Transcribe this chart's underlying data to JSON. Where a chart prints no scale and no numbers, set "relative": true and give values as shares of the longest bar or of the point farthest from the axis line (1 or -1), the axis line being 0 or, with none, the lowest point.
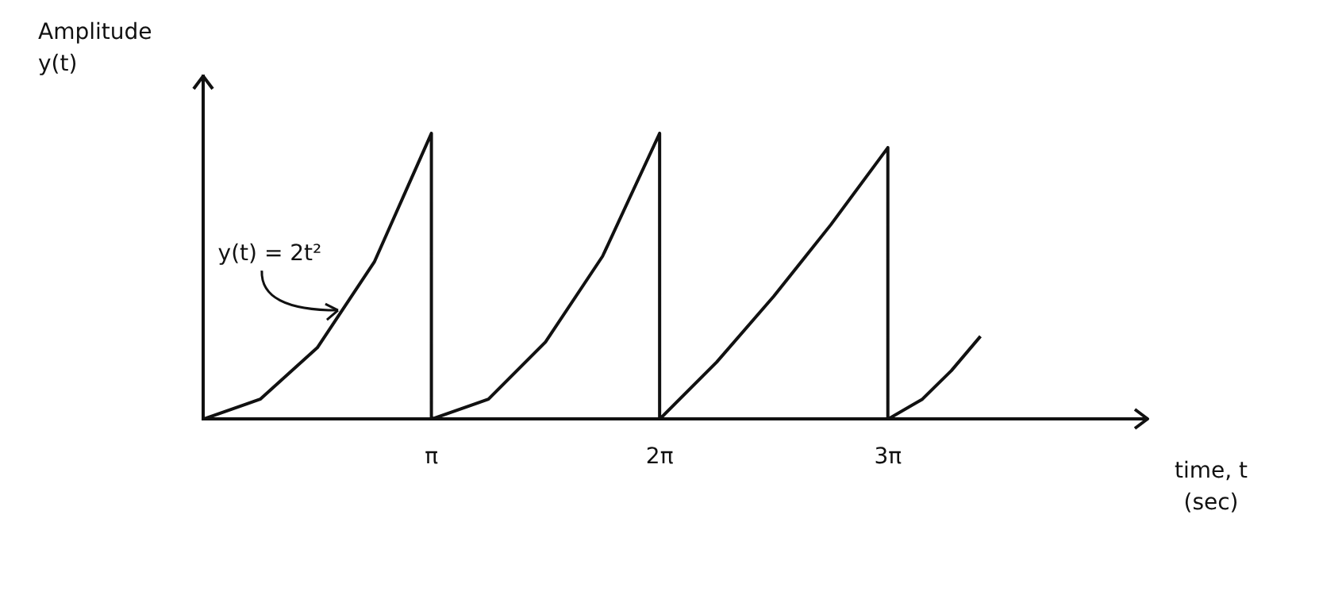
{
  "chart_data": {
    "type": "line",
    "relative": true,
    "ylabel": "Amplitude\ny(t)",
    "xlabel": "time, t\n(sec)",
    "xlim": [
      0,
      13
    ],
    "xticks": [
      {
        "value": 3.1416,
        "label": "π"
      },
      {
        "value": 6.2832,
        "label": "2π"
      },
      {
        "value": 9.4248,
        "label": "3π"
      }
    ],
    "series": [
      {
        "color": "#111111",
        "x": [
          0,
          0.785,
          1.571,
          2.356,
          3.1416,
          3.1416,
          3.927,
          4.712,
          5.498,
          6.2832,
          6.2832,
          7.069,
          7.854,
          8.639,
          9.4248,
          9.4248,
          9.9,
          10.3,
          10.7
        ],
        "values": [
          0,
          0.07,
          0.25,
          0.55,
          1,
          0,
          0.07,
          0.27,
          0.57,
          1,
          0,
          0.2,
          0.43,
          0.68,
          0.95,
          0,
          0.07,
          0.17,
          0.29
        ]
      }
    ],
    "annotations": [
      {
        "text": "y(t) = 2t²",
        "x": 1.9,
        "y": 0.37
      }
    ],
    "grid": false,
    "legend": false,
    "marker": "none",
    "line_style": "solid"
  }
}
